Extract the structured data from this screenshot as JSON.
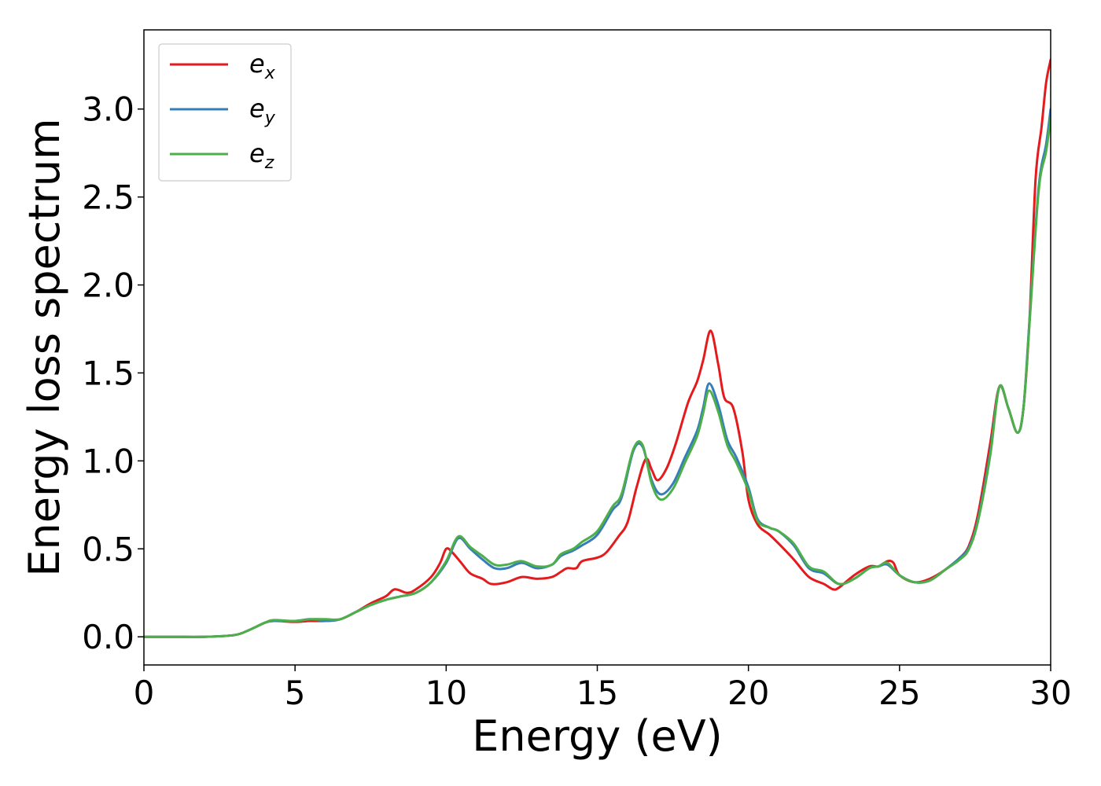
{
  "chart_data": {
    "type": "line",
    "title": "",
    "xlabel": "Energy (eV)",
    "ylabel": "Energy loss spectrum",
    "xlim": [
      0,
      30
    ],
    "ylim": [
      -0.16,
      3.45
    ],
    "xticks": [
      0,
      5,
      10,
      15,
      20,
      25,
      30
    ],
    "xtick_labels": [
      "0",
      "5",
      "10",
      "15",
      "20",
      "25",
      "30"
    ],
    "yticks": [
      0.0,
      0.5,
      1.0,
      1.5,
      2.0,
      2.5,
      3.0
    ],
    "ytick_labels": [
      "0.0",
      "0.5",
      "1.0",
      "1.5",
      "2.0",
      "2.5",
      "3.0"
    ],
    "grid": false,
    "legend_position": "top-left",
    "series": [
      {
        "name": "e_x",
        "legend_base": "e",
        "legend_sub": "x",
        "color": "#e41a1c",
        "x": [
          0,
          1,
          2,
          3,
          3.5,
          4,
          4.3,
          5,
          5.5,
          6,
          6.5,
          7,
          7.5,
          8,
          8.3,
          8.7,
          9,
          9.5,
          9.8,
          10,
          10.2,
          10.5,
          10.8,
          11.2,
          11.5,
          12,
          12.5,
          13,
          13.5,
          13.8,
          14,
          14.3,
          14.5,
          15,
          15.3,
          15.7,
          16,
          16.3,
          16.6,
          16.8,
          17,
          17.3,
          17.6,
          18,
          18.3,
          18.5,
          18.75,
          19,
          19.2,
          19.5,
          19.8,
          20,
          20.3,
          20.7,
          21,
          21.5,
          22,
          22.5,
          22.8,
          23,
          23.5,
          24,
          24.3,
          24.6,
          24.8,
          25,
          25.5,
          26,
          26.5,
          27,
          27.3,
          27.6,
          28,
          28.3,
          28.6,
          28.9,
          29.1,
          29.3,
          29.5,
          29.7,
          29.85,
          30
        ],
        "y": [
          0.0,
          0.0,
          0.0,
          0.01,
          0.04,
          0.08,
          0.09,
          0.085,
          0.09,
          0.09,
          0.1,
          0.14,
          0.19,
          0.23,
          0.27,
          0.25,
          0.27,
          0.34,
          0.42,
          0.5,
          0.48,
          0.42,
          0.36,
          0.33,
          0.3,
          0.31,
          0.34,
          0.33,
          0.34,
          0.37,
          0.39,
          0.39,
          0.43,
          0.45,
          0.48,
          0.57,
          0.65,
          0.85,
          1.01,
          0.95,
          0.89,
          0.96,
          1.1,
          1.33,
          1.45,
          1.57,
          1.74,
          1.55,
          1.36,
          1.3,
          1.05,
          0.78,
          0.64,
          0.58,
          0.53,
          0.44,
          0.34,
          0.3,
          0.27,
          0.28,
          0.35,
          0.4,
          0.4,
          0.43,
          0.42,
          0.35,
          0.31,
          0.33,
          0.38,
          0.45,
          0.52,
          0.7,
          1.1,
          1.42,
          1.3,
          1.16,
          1.3,
          1.8,
          2.6,
          2.9,
          3.15,
          3.28
        ]
      },
      {
        "name": "e_y",
        "legend_base": "e",
        "legend_sub": "y",
        "color": "#377eb8",
        "x": [
          0,
          1,
          2,
          3,
          3.5,
          4,
          4.3,
          5,
          5.5,
          6,
          6.5,
          7,
          7.5,
          8,
          8.5,
          9,
          9.5,
          10,
          10.4,
          10.8,
          11.2,
          11.6,
          12,
          12.5,
          13,
          13.5,
          13.8,
          14.2,
          14.5,
          15,
          15.5,
          15.8,
          16.2,
          16.5,
          16.8,
          17.1,
          17.5,
          17.9,
          18.3,
          18.5,
          18.7,
          19,
          19.3,
          19.6,
          20,
          20.3,
          20.7,
          21,
          21.5,
          22,
          22.5,
          23,
          23.5,
          24,
          24.3,
          24.6,
          25,
          25.5,
          26,
          26.5,
          27,
          27.3,
          27.6,
          28,
          28.3,
          28.6,
          28.9,
          29.1,
          29.3,
          29.6,
          29.85,
          30
        ],
        "y": [
          0.0,
          0.0,
          0.0,
          0.01,
          0.04,
          0.08,
          0.09,
          0.09,
          0.1,
          0.09,
          0.1,
          0.14,
          0.18,
          0.21,
          0.23,
          0.25,
          0.31,
          0.42,
          0.56,
          0.5,
          0.44,
          0.39,
          0.39,
          0.42,
          0.39,
          0.41,
          0.46,
          0.49,
          0.52,
          0.58,
          0.72,
          0.79,
          1.06,
          1.08,
          0.89,
          0.81,
          0.87,
          1.02,
          1.17,
          1.3,
          1.44,
          1.32,
          1.12,
          1.02,
          0.85,
          0.67,
          0.62,
          0.6,
          0.52,
          0.39,
          0.36,
          0.3,
          0.33,
          0.39,
          0.4,
          0.41,
          0.35,
          0.31,
          0.32,
          0.38,
          0.45,
          0.51,
          0.67,
          1.05,
          1.42,
          1.3,
          1.16,
          1.3,
          1.8,
          2.55,
          2.8,
          3.0
        ]
      },
      {
        "name": "e_z",
        "legend_base": "e",
        "legend_sub": "z",
        "color": "#4daf4a",
        "x": [
          0,
          1,
          2,
          3,
          3.5,
          4,
          4.3,
          5,
          5.5,
          6,
          6.5,
          7,
          7.5,
          8,
          8.5,
          9,
          9.5,
          10,
          10.4,
          10.8,
          11.2,
          11.6,
          12,
          12.5,
          13,
          13.5,
          13.8,
          14.2,
          14.5,
          15,
          15.5,
          15.8,
          16.2,
          16.5,
          16.8,
          17.1,
          17.5,
          17.9,
          18.3,
          18.5,
          18.7,
          19,
          19.3,
          19.6,
          20,
          20.3,
          20.7,
          21,
          21.5,
          22,
          22.5,
          23,
          23.5,
          24,
          24.3,
          24.6,
          25,
          25.5,
          26,
          26.5,
          27,
          27.3,
          27.6,
          28,
          28.3,
          28.6,
          28.9,
          29.1,
          29.3,
          29.6,
          29.85,
          30
        ],
        "y": [
          0.0,
          0.0,
          0.0,
          0.01,
          0.04,
          0.08,
          0.095,
          0.09,
          0.1,
          0.1,
          0.1,
          0.14,
          0.18,
          0.21,
          0.23,
          0.25,
          0.31,
          0.43,
          0.57,
          0.51,
          0.46,
          0.41,
          0.41,
          0.43,
          0.4,
          0.41,
          0.47,
          0.5,
          0.54,
          0.6,
          0.74,
          0.81,
          1.07,
          1.09,
          0.87,
          0.78,
          0.84,
          0.99,
          1.14,
          1.27,
          1.4,
          1.28,
          1.09,
          0.99,
          0.83,
          0.66,
          0.62,
          0.6,
          0.53,
          0.4,
          0.37,
          0.3,
          0.33,
          0.39,
          0.4,
          0.42,
          0.35,
          0.31,
          0.32,
          0.38,
          0.44,
          0.5,
          0.66,
          1.03,
          1.42,
          1.3,
          1.16,
          1.3,
          1.78,
          2.53,
          2.76,
          2.95
        ]
      }
    ]
  }
}
